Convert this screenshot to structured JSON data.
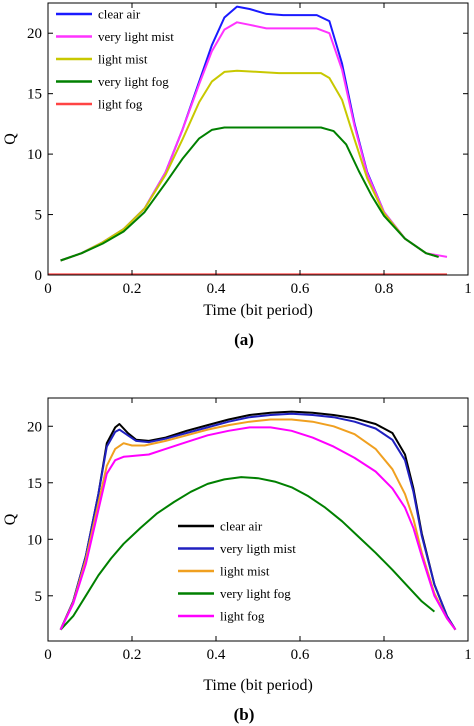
{
  "chart_data": [
    {
      "type": "line",
      "panel_label": "(a)",
      "xlabel": "Time (bit period)",
      "ylabel": "Q",
      "xlim": [
        0,
        1
      ],
      "ylim": [
        0,
        22.5
      ],
      "xticks": [
        0,
        0.2,
        0.4,
        0.6,
        0.8,
        1
      ],
      "yticks": [
        0,
        5,
        10,
        15,
        20
      ],
      "legend_position": "top-left",
      "series": [
        {
          "name": "clear air",
          "color": "#1a1aff",
          "x": [
            0.03,
            0.08,
            0.13,
            0.18,
            0.23,
            0.28,
            0.32,
            0.36,
            0.39,
            0.42,
            0.45,
            0.48,
            0.52,
            0.56,
            0.6,
            0.64,
            0.67,
            0.7,
            0.73,
            0.76,
            0.8,
            0.85,
            0.9,
            0.93
          ],
          "y": [
            1.2,
            1.8,
            2.7,
            3.8,
            5.5,
            8.5,
            12.0,
            16.0,
            19.0,
            21.3,
            22.2,
            22.0,
            21.6,
            21.5,
            21.5,
            21.5,
            21.0,
            17.5,
            12.5,
            8.5,
            5.2,
            3.0,
            1.8,
            1.5
          ]
        },
        {
          "name": "very light mist",
          "color": "#ff33ff",
          "x": [
            0.03,
            0.08,
            0.13,
            0.18,
            0.23,
            0.28,
            0.32,
            0.36,
            0.39,
            0.42,
            0.45,
            0.48,
            0.52,
            0.56,
            0.6,
            0.64,
            0.67,
            0.7,
            0.73,
            0.76,
            0.8,
            0.85,
            0.9,
            0.95
          ],
          "y": [
            1.2,
            1.8,
            2.7,
            3.8,
            5.5,
            8.5,
            12.0,
            15.8,
            18.5,
            20.3,
            20.9,
            20.7,
            20.4,
            20.4,
            20.4,
            20.4,
            20.0,
            17.0,
            12.3,
            8.4,
            5.2,
            3.0,
            1.8,
            1.5
          ]
        },
        {
          "name": "light mist",
          "color": "#c8c800",
          "x": [
            0.03,
            0.08,
            0.13,
            0.18,
            0.23,
            0.28,
            0.32,
            0.36,
            0.39,
            0.42,
            0.45,
            0.5,
            0.55,
            0.6,
            0.65,
            0.67,
            0.7,
            0.73,
            0.76,
            0.8,
            0.85,
            0.9,
            0.93
          ],
          "y": [
            1.2,
            1.8,
            2.7,
            3.8,
            5.5,
            8.3,
            11.2,
            14.3,
            16.0,
            16.8,
            16.9,
            16.8,
            16.7,
            16.7,
            16.7,
            16.3,
            14.5,
            11.2,
            8.0,
            5.1,
            3.0,
            1.8,
            1.5
          ]
        },
        {
          "name": "very light fog",
          "color": "#008000",
          "x": [
            0.03,
            0.08,
            0.13,
            0.18,
            0.23,
            0.28,
            0.32,
            0.36,
            0.39,
            0.42,
            0.45,
            0.5,
            0.55,
            0.6,
            0.65,
            0.68,
            0.71,
            0.74,
            0.77,
            0.8,
            0.85,
            0.9,
            0.93
          ],
          "y": [
            1.2,
            1.8,
            2.6,
            3.6,
            5.2,
            7.6,
            9.6,
            11.3,
            12.0,
            12.2,
            12.2,
            12.2,
            12.2,
            12.2,
            12.2,
            11.9,
            10.8,
            8.6,
            6.6,
            4.9,
            3.0,
            1.8,
            1.5
          ]
        },
        {
          "name": "light fog",
          "color": "#ff4444",
          "x": [
            0.0,
            0.1,
            0.2,
            0.3,
            0.4,
            0.5,
            0.6,
            0.7,
            0.8,
            0.9,
            0.95
          ],
          "y": [
            0.05,
            0.05,
            0.05,
            0.05,
            0.05,
            0.05,
            0.05,
            0.05,
            0.05,
            0.05,
            0.05
          ]
        }
      ]
    },
    {
      "type": "line",
      "panel_label": "(b)",
      "xlabel": "Time (bit period)",
      "ylabel": "Q",
      "xlim": [
        0,
        1
      ],
      "ylim": [
        1,
        22.5
      ],
      "xticks": [
        0,
        0.2,
        0.4,
        0.6,
        0.8,
        1
      ],
      "yticks": [
        5,
        10,
        15,
        20
      ],
      "legend_position": "bottom-center",
      "series": [
        {
          "name": "clear air",
          "color": "#000000",
          "x": [
            0.03,
            0.06,
            0.09,
            0.12,
            0.14,
            0.16,
            0.17,
            0.19,
            0.21,
            0.24,
            0.28,
            0.33,
            0.38,
            0.43,
            0.48,
            0.53,
            0.58,
            0.63,
            0.68,
            0.73,
            0.78,
            0.82,
            0.85,
            0.87,
            0.89,
            0.92,
            0.95,
            0.97
          ],
          "y": [
            2.0,
            4.5,
            8.5,
            14.0,
            18.5,
            19.9,
            20.2,
            19.4,
            18.8,
            18.7,
            19.0,
            19.6,
            20.1,
            20.6,
            21.0,
            21.2,
            21.3,
            21.2,
            21.0,
            20.7,
            20.2,
            19.4,
            17.5,
            14.5,
            10.5,
            6.0,
            3.2,
            2.0
          ]
        },
        {
          "name": "very ligth mist",
          "color": "#2020c0",
          "x": [
            0.03,
            0.06,
            0.09,
            0.12,
            0.14,
            0.16,
            0.17,
            0.19,
            0.21,
            0.24,
            0.28,
            0.33,
            0.38,
            0.43,
            0.48,
            0.53,
            0.58,
            0.63,
            0.68,
            0.73,
            0.78,
            0.82,
            0.85,
            0.87,
            0.89,
            0.92,
            0.95,
            0.97
          ],
          "y": [
            2.0,
            4.5,
            8.5,
            14.0,
            18.2,
            19.5,
            19.7,
            19.2,
            18.7,
            18.6,
            18.9,
            19.4,
            19.9,
            20.4,
            20.8,
            21.0,
            21.1,
            21.0,
            20.8,
            20.4,
            19.8,
            18.8,
            17.0,
            14.2,
            10.3,
            6.0,
            3.2,
            2.0
          ]
        },
        {
          "name": "light mist",
          "color": "#f0a020",
          "x": [
            0.03,
            0.06,
            0.09,
            0.12,
            0.14,
            0.16,
            0.18,
            0.2,
            0.23,
            0.28,
            0.33,
            0.38,
            0.43,
            0.48,
            0.53,
            0.58,
            0.63,
            0.68,
            0.73,
            0.78,
            0.82,
            0.85,
            0.87,
            0.89,
            0.92,
            0.95,
            0.97
          ],
          "y": [
            2.0,
            4.4,
            8.2,
            13.2,
            16.5,
            18.0,
            18.5,
            18.3,
            18.3,
            18.7,
            19.2,
            19.7,
            20.1,
            20.4,
            20.6,
            20.6,
            20.4,
            20.0,
            19.3,
            18.0,
            16.2,
            14.0,
            11.8,
            8.8,
            5.2,
            3.0,
            2.0
          ]
        },
        {
          "name": "very light fog",
          "color": "#008000",
          "x": [
            0.03,
            0.06,
            0.09,
            0.12,
            0.15,
            0.18,
            0.22,
            0.26,
            0.3,
            0.34,
            0.38,
            0.42,
            0.46,
            0.5,
            0.54,
            0.58,
            0.62,
            0.66,
            0.7,
            0.74,
            0.78,
            0.82,
            0.86,
            0.89,
            0.92
          ],
          "y": [
            2.0,
            3.2,
            5.0,
            6.8,
            8.3,
            9.6,
            11.0,
            12.3,
            13.3,
            14.2,
            14.9,
            15.3,
            15.5,
            15.4,
            15.1,
            14.6,
            13.8,
            12.8,
            11.6,
            10.2,
            8.8,
            7.3,
            5.7,
            4.5,
            3.6
          ]
        },
        {
          "name": "light fog",
          "color": "#ff00ff",
          "x": [
            0.03,
            0.06,
            0.09,
            0.12,
            0.14,
            0.16,
            0.18,
            0.21,
            0.24,
            0.28,
            0.33,
            0.38,
            0.43,
            0.48,
            0.53,
            0.58,
            0.63,
            0.68,
            0.73,
            0.78,
            0.82,
            0.85,
            0.87,
            0.89,
            0.92,
            0.95,
            0.97
          ],
          "y": [
            2.0,
            4.3,
            7.8,
            12.6,
            15.8,
            17.0,
            17.3,
            17.4,
            17.5,
            18.0,
            18.6,
            19.2,
            19.6,
            19.9,
            19.9,
            19.6,
            19.0,
            18.2,
            17.2,
            16.0,
            14.5,
            12.8,
            11.0,
            8.5,
            5.0,
            3.0,
            2.0
          ]
        }
      ]
    }
  ]
}
